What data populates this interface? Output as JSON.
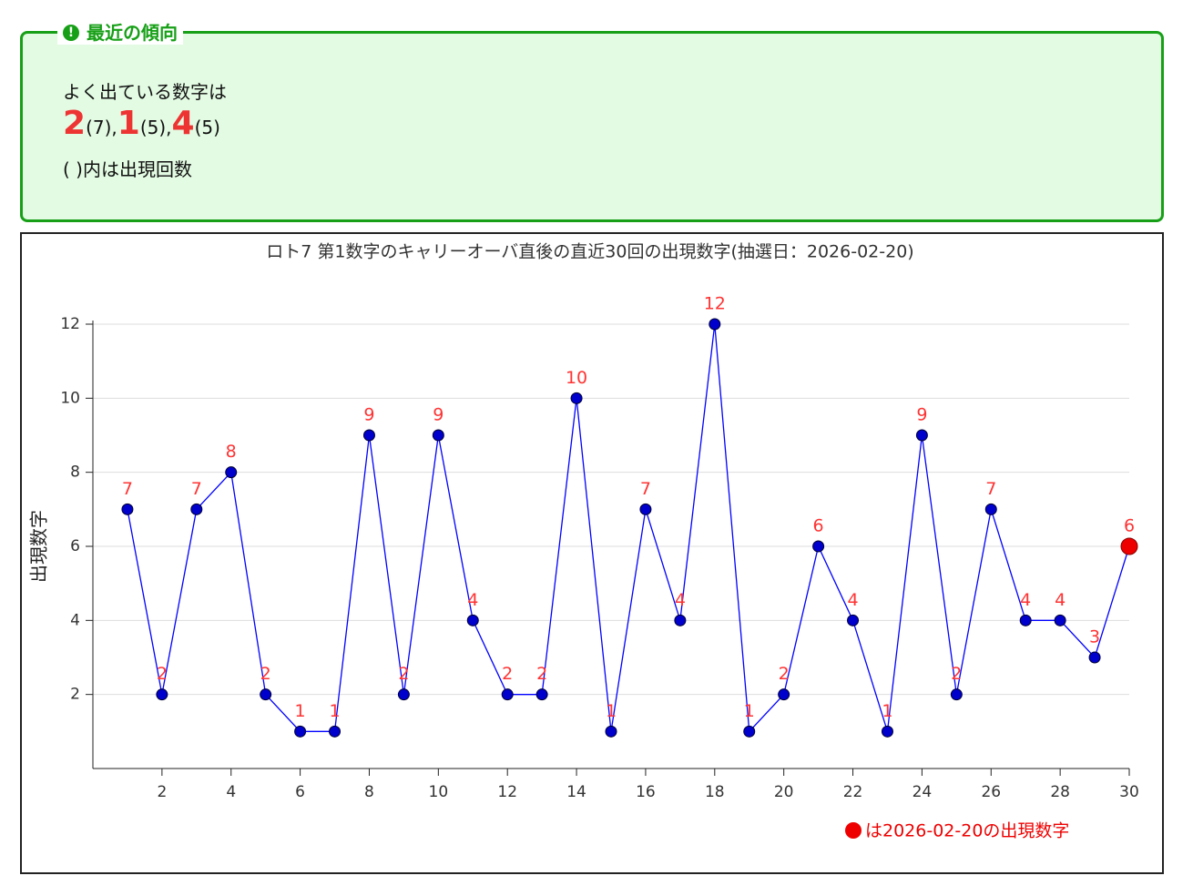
{
  "notice": {
    "title": "最近の傾向",
    "intro": "よく出ている数字は",
    "numbers": [
      "2",
      "1",
      "4"
    ],
    "counts": [
      "(7)",
      "(5)",
      "(5)"
    ],
    "separator": ",",
    "note": "( )内は出現回数"
  },
  "chart_data": {
    "type": "line",
    "title": "ロト7 第1数字のキャリーオーバ直後の直近30回の出現数字(抽選日：2026-02-20)",
    "ylabel": "出現数字",
    "x": [
      1,
      2,
      3,
      4,
      5,
      6,
      7,
      8,
      9,
      10,
      11,
      12,
      13,
      14,
      15,
      16,
      17,
      18,
      19,
      20,
      21,
      22,
      23,
      24,
      25,
      26,
      27,
      28,
      29,
      30
    ],
    "series": [
      {
        "name": "出現数字",
        "color": "#0000ff",
        "marker_color": "#0000cc",
        "label_color": "#ff3333",
        "values": [
          7,
          2,
          7,
          8,
          2,
          1,
          1,
          9,
          2,
          9,
          4,
          2,
          2,
          10,
          1,
          7,
          4,
          12,
          1,
          2,
          6,
          4,
          1,
          9,
          2,
          7,
          4,
          4,
          3,
          6
        ]
      }
    ],
    "highlight": {
      "color": "#ee0000",
      "legend": "は2026-02-20の出現数字"
    },
    "xlim": [
      0,
      30
    ],
    "xticks": [
      2,
      4,
      6,
      8,
      10,
      12,
      14,
      16,
      18,
      20,
      22,
      24,
      26,
      28,
      30
    ],
    "ylim": [
      0,
      12
    ],
    "yticks": [
      2,
      4,
      6,
      8,
      10,
      12
    ],
    "grid": true
  }
}
